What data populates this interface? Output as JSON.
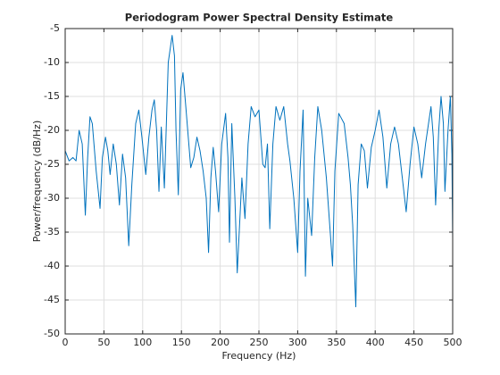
{
  "chart_data": {
    "type": "line",
    "title": "Periodogram Power Spectral Density Estimate",
    "xlabel": "Frequency (Hz)",
    "ylabel": "Power/frequency (dB/Hz)",
    "color": "#0072bd",
    "grid": true,
    "xlim": [
      0,
      500
    ],
    "ylim": [
      -50,
      -5
    ],
    "xticks": [
      0,
      50,
      100,
      150,
      200,
      250,
      300,
      350,
      400,
      450,
      500
    ],
    "yticks": [
      -50,
      -45,
      -40,
      -35,
      -30,
      -25,
      -20,
      -15,
      -10,
      -5
    ],
    "x": [
      0,
      5,
      10,
      14,
      18,
      22,
      26,
      29,
      32,
      35,
      40,
      45,
      48,
      52,
      55,
      58,
      62,
      66,
      70,
      74,
      78,
      82,
      86,
      91,
      95,
      99,
      104,
      108,
      112,
      115,
      118,
      121,
      124,
      128,
      133,
      138,
      141,
      143,
      146,
      149,
      152,
      156,
      162,
      166,
      170,
      174,
      178,
      182,
      185,
      188,
      191,
      194,
      198,
      202,
      207,
      210,
      212,
      215,
      219,
      222,
      225,
      228,
      232,
      236,
      240,
      245,
      250,
      255,
      258,
      261,
      264,
      268,
      272,
      277,
      282,
      287,
      290,
      295,
      300,
      303,
      307,
      310,
      313,
      318,
      322,
      326,
      331,
      337,
      342,
      345,
      348,
      353,
      360,
      365,
      368,
      371,
      375,
      378,
      382,
      386,
      390,
      395,
      400,
      405,
      410,
      415,
      420,
      425,
      430,
      435,
      440,
      445,
      450,
      455,
      460,
      465,
      472,
      475,
      478,
      482,
      485,
      488,
      490,
      494,
      497,
      499,
      500
    ],
    "values": [
      -23,
      -24.5,
      -24,
      -24.5,
      -20,
      -22,
      -32.5,
      -24,
      -18,
      -19,
      -26,
      -31.5,
      -24,
      -21,
      -23,
      -26.5,
      -22,
      -25,
      -31,
      -23.5,
      -27,
      -37,
      -28,
      -19,
      -17,
      -21,
      -26.5,
      -21,
      -17,
      -15.5,
      -20,
      -29,
      -19.5,
      -28.5,
      -10,
      -6,
      -9,
      -20,
      -29.5,
      -14,
      -11.5,
      -17,
      -25.5,
      -24,
      -21,
      -23,
      -26,
      -30,
      -38,
      -27,
      -22.5,
      -26,
      -32,
      -22,
      -17.5,
      -24,
      -36.5,
      -19,
      -30,
      -41,
      -34,
      -27,
      -33,
      -22,
      -16.5,
      -18,
      -17,
      -25,
      -25.5,
      -22,
      -34.5,
      -22,
      -16.5,
      -18.5,
      -16.5,
      -22,
      -24.5,
      -30,
      -38,
      -26,
      -17,
      -41.5,
      -30,
      -35.5,
      -24,
      -16.5,
      -20,
      -27,
      -35,
      -40,
      -26,
      -17.5,
      -19,
      -24,
      -28,
      -34,
      -46,
      -28,
      -22,
      -23,
      -28.5,
      -22.5,
      -20,
      -17,
      -21,
      -28.5,
      -22,
      -19.5,
      -22,
      -27,
      -32,
      -25,
      -19.5,
      -22,
      -27,
      -22,
      -16.5,
      -21,
      -31,
      -20,
      -15,
      -19,
      -29,
      -20,
      -15,
      -23.5,
      -36
    ]
  }
}
